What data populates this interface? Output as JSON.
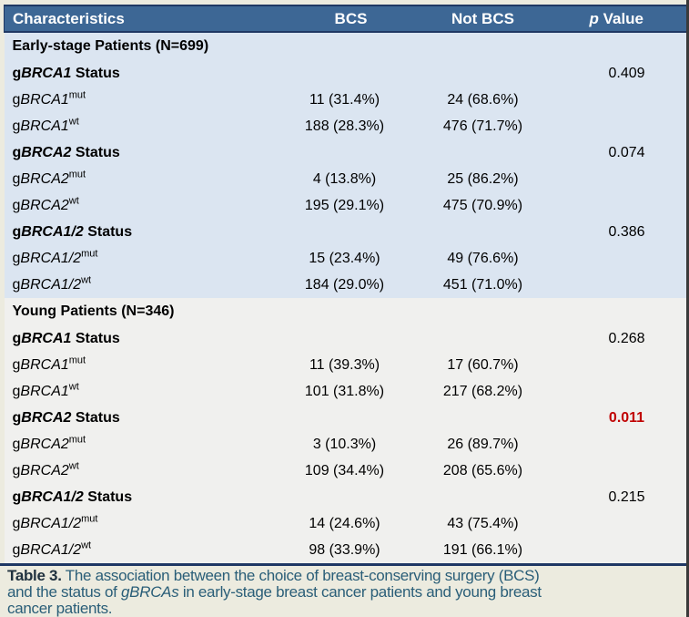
{
  "colors": {
    "header_bg": "#3D6795",
    "header_text": "#FFFFFF",
    "early_bg": "#DBE5F1",
    "young_bg": "#F0F0EE",
    "frame_bg": "#ECEBDF",
    "rule": "#1F3864",
    "significant": "#C00000",
    "caption_text": "#2A5E78",
    "caption_label": "#20323F",
    "edge": "#3A3A3A",
    "body_text": "#000000"
  },
  "table": {
    "columns": [
      {
        "key": "characteristics",
        "parts": [
          {
            "t": "Characteristics"
          }
        ]
      },
      {
        "key": "bcs",
        "parts": [
          {
            "t": "BCS"
          }
        ]
      },
      {
        "key": "not-bcs",
        "parts": [
          {
            "t": "Not BCS"
          }
        ]
      },
      {
        "key": "p-value",
        "parts": [
          {
            "t": "p",
            "s": "i"
          },
          {
            "t": " Value"
          }
        ]
      }
    ],
    "sections": [
      {
        "key": "early",
        "title_parts": [
          {
            "t": "Early-stage Patients (N=699)",
            "s": "b"
          }
        ],
        "rows": [
          {
            "type": "group",
            "label_parts": [
              {
                "t": "g",
                "s": "b"
              },
              {
                "t": "BRCA1",
                "s": "bi"
              },
              {
                "t": " Status",
                "s": "b"
              }
            ],
            "p": "0.409",
            "significant": false
          },
          {
            "type": "data",
            "label_parts": [
              {
                "t": "g"
              },
              {
                "t": "BRCA1",
                "s": "i"
              },
              {
                "t": "mut",
                "s": "sup"
              }
            ],
            "bcs": "11 (31.4%)",
            "not_bcs": "24 (68.6%)"
          },
          {
            "type": "data",
            "label_parts": [
              {
                "t": "g"
              },
              {
                "t": "BRCA1",
                "s": "i"
              },
              {
                "t": "wt",
                "s": "sup"
              }
            ],
            "bcs": "188 (28.3%)",
            "not_bcs": "476 (71.7%)"
          },
          {
            "type": "group",
            "label_parts": [
              {
                "t": "g",
                "s": "b"
              },
              {
                "t": "BRCA2",
                "s": "bi"
              },
              {
                "t": " Status",
                "s": "b"
              }
            ],
            "p": "0.074",
            "significant": false
          },
          {
            "type": "data",
            "label_parts": [
              {
                "t": "g"
              },
              {
                "t": "BRCA2",
                "s": "i"
              },
              {
                "t": "mut",
                "s": "sup"
              }
            ],
            "bcs": "4 (13.8%)",
            "not_bcs": "25 (86.2%)"
          },
          {
            "type": "data",
            "label_parts": [
              {
                "t": "g"
              },
              {
                "t": "BRCA2",
                "s": "i"
              },
              {
                "t": "wt",
                "s": "sup"
              }
            ],
            "bcs": "195 (29.1%)",
            "not_bcs": "475 (70.9%)"
          },
          {
            "type": "group",
            "label_parts": [
              {
                "t": "g",
                "s": "b"
              },
              {
                "t": "BRCA1/2",
                "s": "bi"
              },
              {
                "t": " Status",
                "s": "b"
              }
            ],
            "p": "0.386",
            "significant": false
          },
          {
            "type": "data",
            "label_parts": [
              {
                "t": "g"
              },
              {
                "t": "BRCA1/2",
                "s": "i"
              },
              {
                "t": "mut",
                "s": "sup"
              }
            ],
            "bcs": "15 (23.4%)",
            "not_bcs": "49 (76.6%)"
          },
          {
            "type": "data",
            "label_parts": [
              {
                "t": "g"
              },
              {
                "t": "BRCA1/2",
                "s": "i"
              },
              {
                "t": "wt",
                "s": "sup"
              }
            ],
            "bcs": "184 (29.0%)",
            "not_bcs": "451 (71.0%)"
          }
        ]
      },
      {
        "key": "young",
        "title_parts": [
          {
            "t": "Young Patients (N=346)",
            "s": "b"
          }
        ],
        "rows": [
          {
            "type": "group",
            "label_parts": [
              {
                "t": "g",
                "s": "b"
              },
              {
                "t": "BRCA1",
                "s": "bi"
              },
              {
                "t": " Status",
                "s": "b"
              }
            ],
            "p": "0.268",
            "significant": false
          },
          {
            "type": "data",
            "label_parts": [
              {
                "t": "g"
              },
              {
                "t": "BRCA1",
                "s": "i"
              },
              {
                "t": "mut",
                "s": "sup"
              }
            ],
            "bcs": "11 (39.3%)",
            "not_bcs": "17 (60.7%)"
          },
          {
            "type": "data",
            "label_parts": [
              {
                "t": "g"
              },
              {
                "t": "BRCA1",
                "s": "i"
              },
              {
                "t": "wt",
                "s": "sup"
              }
            ],
            "bcs": "101 (31.8%)",
            "not_bcs": "217 (68.2%)"
          },
          {
            "type": "group",
            "label_parts": [
              {
                "t": "g",
                "s": "b"
              },
              {
                "t": "BRCA2",
                "s": "bi"
              },
              {
                "t": " Status",
                "s": "b"
              }
            ],
            "p": "0.011",
            "significant": true
          },
          {
            "type": "data",
            "label_parts": [
              {
                "t": "g"
              },
              {
                "t": "BRCA2",
                "s": "i"
              },
              {
                "t": "mut",
                "s": "sup"
              }
            ],
            "bcs": "3 (10.3%)",
            "not_bcs": "26 (89.7%)"
          },
          {
            "type": "data",
            "label_parts": [
              {
                "t": "g"
              },
              {
                "t": "BRCA2",
                "s": "i"
              },
              {
                "t": "wt",
                "s": "sup"
              }
            ],
            "bcs": "109 (34.4%)",
            "not_bcs": "208 (65.6%)"
          },
          {
            "type": "group",
            "label_parts": [
              {
                "t": "g",
                "s": "b"
              },
              {
                "t": "BRCA1/2",
                "s": "bi"
              },
              {
                "t": " Status",
                "s": "b"
              }
            ],
            "p": "0.215",
            "significant": false
          },
          {
            "type": "data",
            "label_parts": [
              {
                "t": "g"
              },
              {
                "t": "BRCA1/2",
                "s": "i"
              },
              {
                "t": "mut",
                "s": "sup"
              }
            ],
            "bcs": "14 (24.6%)",
            "not_bcs": "43 (75.4%)"
          },
          {
            "type": "data",
            "label_parts": [
              {
                "t": "g"
              },
              {
                "t": "BRCA1/2",
                "s": "i"
              },
              {
                "t": "wt",
                "s": "sup"
              }
            ],
            "bcs": "98 (33.9%)",
            "not_bcs": "191 (66.1%)"
          }
        ]
      }
    ]
  },
  "caption": {
    "parts": [
      {
        "t": "Table 3.",
        "s": "b",
        "c": "label"
      },
      {
        "t": " The association between the choice of breast-conserving surgery (BCS)"
      },
      {
        "br": true
      },
      {
        "t": "and the status of "
      },
      {
        "t": "gBRCAs",
        "s": "i"
      },
      {
        "t": " in early-stage breast cancer patients and young breast"
      },
      {
        "br": true
      },
      {
        "t": "cancer patients."
      }
    ]
  }
}
